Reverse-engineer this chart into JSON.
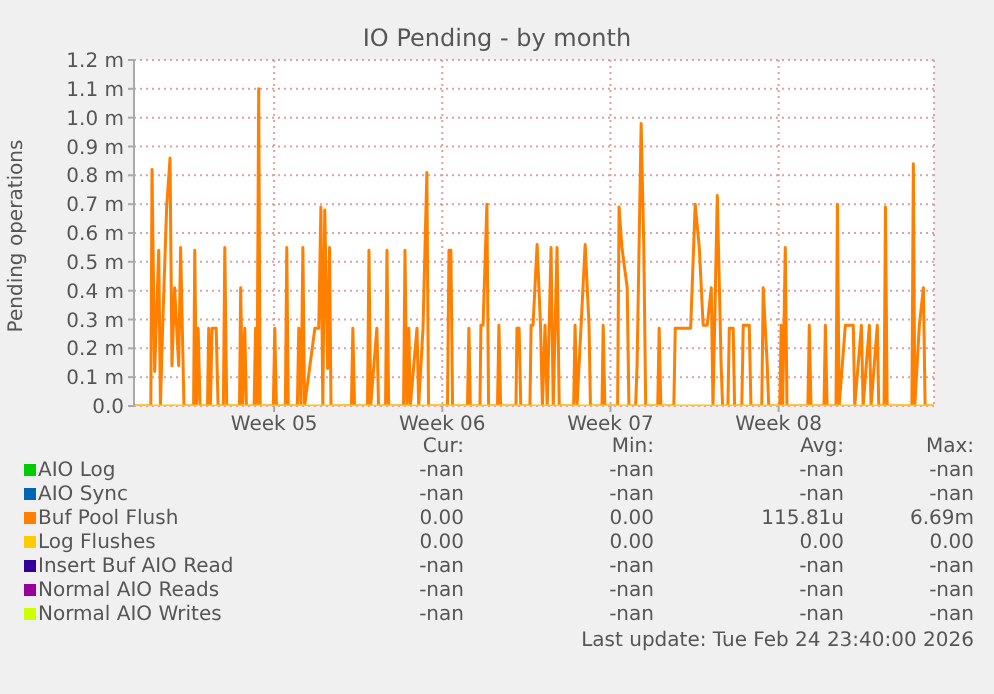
{
  "chart_data": {
    "type": "line",
    "title": "IO Pending - by month",
    "ylabel": "Pending operations",
    "xlim": [
      "2026-01-23T00:00",
      "2026-02-25T07:12"
    ],
    "xticks": [
      {
        "value": "2026-01-28T20:00",
        "label": "Week 05"
      },
      {
        "value": "2026-02-04T20:00",
        "label": "Week 06"
      },
      {
        "value": "2026-02-11T20:00",
        "label": "Week 07"
      },
      {
        "value": "2026-02-18T20:00",
        "label": "Week 08"
      }
    ],
    "ylim": [
      0,
      1.2
    ],
    "yticks": [
      {
        "value": 0,
        "label": "0.0"
      },
      {
        "value": 0.1,
        "label": "0.1 m"
      },
      {
        "value": 0.2,
        "label": "0.2 m"
      },
      {
        "value": 0.3,
        "label": "0.3 m"
      },
      {
        "value": 0.4,
        "label": "0.4 m"
      },
      {
        "value": 0.5,
        "label": "0.5 m"
      },
      {
        "value": 0.6,
        "label": "0.6 m"
      },
      {
        "value": 0.7,
        "label": "0.7 m"
      },
      {
        "value": 0.8,
        "label": "0.8 m"
      },
      {
        "value": 0.9,
        "label": "0.9 m"
      },
      {
        "value": 1.0,
        "label": "1.0 m"
      },
      {
        "value": 1.1,
        "label": "1.1 m"
      },
      {
        "value": 1.2,
        "label": "1.2 m"
      }
    ],
    "grid": true,
    "legend": "bottom",
    "series": [
      {
        "name": "AIO Log",
        "color": "#00cc00"
      },
      {
        "name": "AIO Sync",
        "color": "#0066b3"
      },
      {
        "name": "Buf Pool Flush",
        "color": "#ff8000",
        "x": [
          "2026-01-23T00:00",
          "2026-01-23T16:48",
          "2026-01-23T18:00",
          "2026-01-23T20:38",
          "2026-01-24T00:43",
          "2026-01-24T02:24",
          "2026-01-24T04:34",
          "2026-01-24T08:38",
          "2026-01-24T12:00",
          "2026-01-24T13:55",
          "2026-01-24T16:34",
          "2026-01-24T20:38",
          "2026-01-24T22:34",
          "2026-01-25T01:55",
          "2026-01-25T11:31",
          "2026-01-25T12:43",
          "2026-01-25T14:24",
          "2026-01-25T16:05",
          "2026-01-25T18:00",
          "2026-01-26T01:26",
          "2026-01-26T02:38",
          "2026-01-26T04:19",
          "2026-01-26T06:00",
          "2026-01-26T10:05",
          "2026-01-26T12:00",
          "2026-01-26T17:17",
          "2026-01-26T18:43",
          "2026-01-26T20:38",
          "2026-01-27T09:22",
          "2026-01-27T10:34",
          "2026-01-27T12:29",
          "2026-01-27T14:38",
          "2026-01-27T16:19",
          "2026-01-28T00:00",
          "2026-01-28T01:26",
          "2026-01-28T02:53",
          "2026-01-28T04:34",
          "2026-01-28T06:00",
          "2026-01-28T19:12",
          "2026-01-28T20:38",
          "2026-01-28T22:19",
          "2026-01-29T07:12",
          "2026-01-29T08:38",
          "2026-01-29T10:05",
          "2026-01-29T19:12",
          "2026-01-29T20:38",
          "2026-01-29T22:48",
          "2026-01-30T00:43",
          "2026-01-30T02:24",
          "2026-01-30T12:43",
          "2026-01-30T16:34",
          "2026-01-30T18:43",
          "2026-01-30T20:38",
          "2026-01-30T22:34",
          "2026-01-31T01:26",
          "2026-01-31T03:22",
          "2026-01-31T04:48",
          "2026-02-01T01:12",
          "2026-02-01T02:38",
          "2026-02-01T04:19",
          "2026-02-01T17:17",
          "2026-02-01T18:43",
          "2026-02-01T20:24",
          "2026-02-02T02:38",
          "2026-02-02T04:19",
          "2026-02-02T11:17",
          "2026-02-02T12:43",
          "2026-02-02T14:24",
          "2026-02-03T05:17",
          "2026-02-03T06:43",
          "2026-02-03T08:38",
          "2026-02-03T10:34",
          "2026-02-03T12:00",
          "2026-02-03T18:43",
          "2026-02-03T20:24",
          "2026-02-04T00:43",
          "2026-02-04T04:34",
          "2026-02-04T06:14",
          "2026-02-05T01:12",
          "2026-02-05T02:38",
          "2026-02-05T04:34",
          "2026-02-05T06:14",
          "2026-02-05T21:07",
          "2026-02-05T22:34",
          "2026-02-06T00:00",
          "2026-02-06T09:36",
          "2026-02-06T10:34",
          "2026-02-06T12:43",
          "2026-02-06T16:34",
          "2026-02-06T18:14",
          "2026-02-07T03:07",
          "2026-02-07T04:34",
          "2026-02-07T06:14",
          "2026-02-07T21:36",
          "2026-02-07T22:34",
          "2026-02-08T00:43",
          "2026-02-08T02:24",
          "2026-02-08T11:31",
          "2026-02-08T12:43",
          "2026-02-08T14:38",
          "2026-02-08T18:43",
          "2026-02-08T22:05",
          "2026-02-09T00:00",
          "2026-02-09T02:38",
          "2026-02-09T04:48",
          "2026-02-09T08:38",
          "2026-02-09T10:48",
          "2026-02-09T14:38",
          "2026-02-09T16:48",
          "2026-02-10T07:12",
          "2026-02-10T08:38",
          "2026-02-10T10:34",
          "2026-02-10T18:43",
          "2026-02-10T22:34",
          "2026-02-11T00:00",
          "2026-02-11T11:31",
          "2026-02-11T12:43",
          "2026-02-11T14:24",
          "2026-02-12T03:07",
          "2026-02-12T04:34",
          "2026-02-12T07:26",
          "2026-02-12T12:43",
          "2026-02-12T14:24",
          "2026-02-12T21:07",
          "2026-02-12T22:34",
          "2026-02-13T02:38",
          "2026-02-13T05:17",
          "2026-02-13T07:12",
          "2026-02-13T19:12",
          "2026-02-13T20:38",
          "2026-02-13T22:19",
          "2026-02-14T11:17",
          "2026-02-14T12:43",
          "2026-02-14T16:34",
          "2026-02-14T20:38",
          "2026-02-15T00:43",
          "2026-02-15T04:05",
          "2026-02-15T08:38",
          "2026-02-15T12:43",
          "2026-02-15T16:34",
          "2026-02-15T20:38",
          "2026-02-16T00:43",
          "2026-02-16T02:24",
          "2026-02-16T06:43",
          "2026-02-16T10:34",
          "2026-02-16T12:00",
          "2026-02-16T17:17",
          "2026-02-16T18:43",
          "2026-02-16T22:34",
          "2026-02-17T00:00",
          "2026-02-17T07:12",
          "2026-02-17T08:38",
          "2026-02-17T14:38",
          "2026-02-17T16:19",
          "2026-02-18T03:07",
          "2026-02-18T04:34",
          "2026-02-18T08:38",
          "2026-02-18T10:05",
          "2026-02-18T21:07",
          "2026-02-18T22:34",
          "2026-02-19T00:00",
          "2026-02-19T02:38",
          "2026-02-19T04:19",
          "2026-02-20T01:12",
          "2026-02-20T02:38",
          "2026-02-20T04:19",
          "2026-02-20T17:17",
          "2026-02-20T18:43",
          "2026-02-20T20:24",
          "2026-02-21T05:17",
          "2026-02-21T06:43",
          "2026-02-21T08:24",
          "2026-02-21T14:38",
          "2026-02-21T22:34",
          "2026-02-22T00:00",
          "2026-02-22T06:43",
          "2026-02-22T08:24",
          "2026-02-22T14:38",
          "2026-02-22T16:19",
          "2026-02-22T22:34",
          "2026-02-23T00:00",
          "2026-02-23T05:17",
          "2026-02-23T06:43",
          "2026-02-23T08:24",
          "2026-02-24T09:07",
          "2026-02-24T10:34",
          "2026-02-24T12:00",
          "2026-02-24T16:34",
          "2026-02-24T20:38",
          "2026-02-24T22:19",
          "2026-02-25T07:12"
        ],
        "values": [
          0,
          0,
          0.82,
          0.12,
          0.54,
          0,
          0.27,
          0.69,
          0.86,
          0.14,
          0.41,
          0.14,
          0.55,
          0,
          0,
          0.54,
          0,
          0.27,
          0,
          0,
          0.27,
          0,
          0.27,
          0.27,
          0,
          0,
          0.55,
          0,
          0,
          0.41,
          0,
          0.27,
          0,
          0,
          0.27,
          0,
          1.1,
          0,
          0,
          0.27,
          0,
          0,
          0.55,
          0,
          0,
          0.27,
          0,
          0.55,
          0,
          0.27,
          0.27,
          0.69,
          0,
          0.68,
          0.13,
          0.55,
          0,
          0,
          0.27,
          0,
          0,
          0.54,
          0,
          0.27,
          0,
          0,
          0.54,
          0,
          0,
          0.54,
          0,
          0.27,
          0,
          0.27,
          0,
          0.27,
          0.81,
          0,
          0,
          0.54,
          0.54,
          0,
          0,
          0.27,
          0,
          0,
          0.28,
          0.28,
          0.7,
          0,
          0,
          0.28,
          0,
          0,
          0.27,
          0.27,
          0,
          0,
          0.28,
          0.28,
          0.56,
          0.28,
          0,
          0.28,
          0,
          0.55,
          0,
          0.55,
          0,
          0,
          0.28,
          0,
          0.56,
          0.28,
          0,
          0,
          0.28,
          0,
          0,
          0.69,
          0.55,
          0.41,
          0,
          0,
          0.14,
          0.98,
          0.55,
          0,
          0,
          0.27,
          0,
          0,
          0.27,
          0.27,
          0.27,
          0.27,
          0.27,
          0.7,
          0.55,
          0.28,
          0.28,
          0.41,
          0,
          0.73,
          0.14,
          0,
          0,
          0.27,
          0.27,
          0,
          0,
          0.28,
          0.28,
          0,
          0,
          0.41,
          0.14,
          0,
          0,
          0.28,
          0,
          0.55,
          0,
          0,
          0.28,
          0,
          0,
          0.28,
          0,
          0,
          0.7,
          0,
          0.28,
          0.28,
          0,
          0.28,
          0,
          0.28,
          0,
          0.28,
          0,
          0,
          0.69,
          0,
          0,
          0.84,
          0,
          0.28,
          0.41,
          0,
          0
        ]
      },
      {
        "name": "Log Flushes",
        "color": "#ffcc00",
        "x": [
          "2026-01-23T00:00",
          "2026-02-25T07:12"
        ],
        "values": [
          0,
          0
        ]
      },
      {
        "name": "Insert Buf AIO Read",
        "color": "#330099"
      },
      {
        "name": "Normal AIO Reads",
        "color": "#990099"
      },
      {
        "name": "Normal AIO Writes",
        "color": "#ccff00"
      }
    ],
    "annotations": [
      "Cur:",
      "Min:",
      "Avg:",
      "Max:",
      "-nan",
      "-nan",
      "-nan",
      "-nan",
      "-nan",
      "-nan",
      "-nan",
      "-nan",
      "0.00",
      "0.00",
      "115.81u",
      "6.69m",
      "0.00",
      "0.00",
      "0.00",
      "0.00",
      "-nan",
      "-nan",
      "-nan",
      "-nan",
      "-nan",
      "-nan",
      "-nan",
      "-nan",
      "-nan",
      "-nan",
      "-nan",
      "-nan",
      "Last update: Tue Feb 24 23:40:00 2026"
    ]
  }
}
